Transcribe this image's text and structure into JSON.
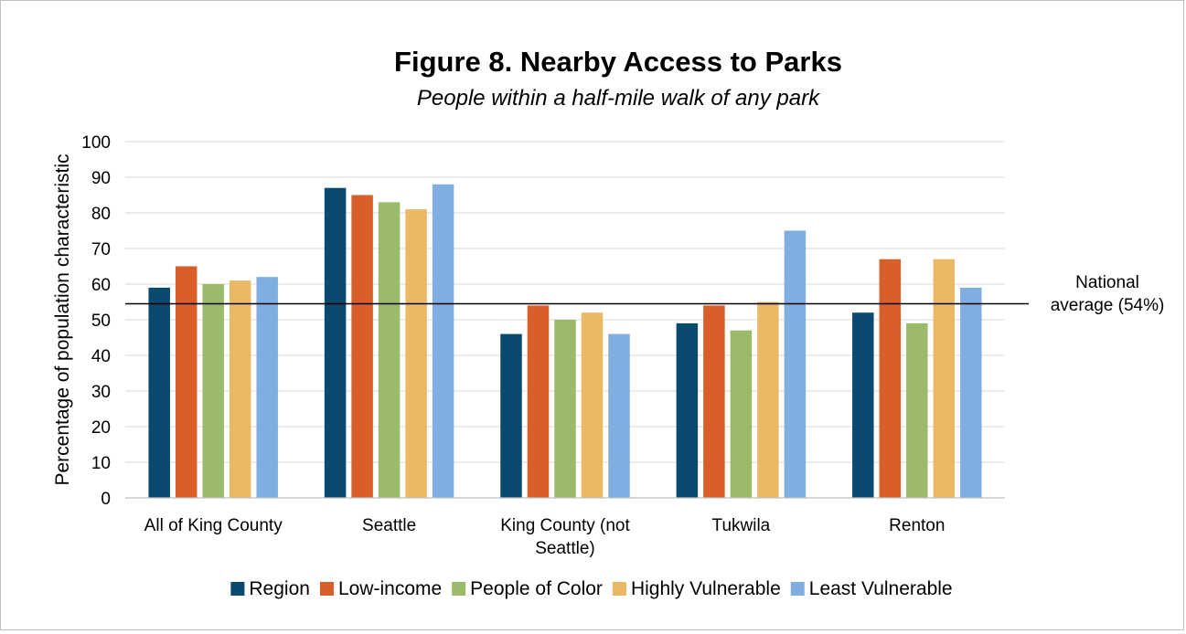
{
  "chart_data": {
    "type": "bar",
    "title": "Figure 8. Nearby Access to Parks",
    "subtitle": "People within a half-mile walk of any park",
    "ylabel": "Percentage of population characteristic",
    "xlabel": "",
    "ylim": [
      0,
      100
    ],
    "yticks": [
      0,
      10,
      20,
      30,
      40,
      50,
      60,
      70,
      80,
      90,
      100
    ],
    "grid": true,
    "legend_position": "bottom",
    "categories": [
      "All of King County",
      "Seattle",
      "King County (not Seattle)",
      "Tukwila",
      "Renton"
    ],
    "category_label_lines": [
      [
        "All of King County"
      ],
      [
        "Seattle"
      ],
      [
        "King County (not",
        "Seattle)"
      ],
      [
        "Tukwila"
      ],
      [
        "Renton"
      ]
    ],
    "series": [
      {
        "name": "Region",
        "color": "#0a4a6e",
        "values": [
          59,
          87,
          46,
          49,
          52
        ]
      },
      {
        "name": "Low-income",
        "color": "#d95f2a",
        "values": [
          65,
          85,
          54,
          54,
          67
        ]
      },
      {
        "name": "People of Color",
        "color": "#9bbb6a",
        "values": [
          60,
          83,
          50,
          47,
          49
        ]
      },
      {
        "name": "Highly Vulnerable",
        "color": "#ebb865",
        "values": [
          61,
          81,
          52,
          55,
          67
        ]
      },
      {
        "name": "Least Vulnerable",
        "color": "#80aee0",
        "values": [
          62,
          88,
          46,
          75,
          59
        ]
      }
    ],
    "reference_line": {
      "value": 54.5,
      "label_lines": [
        "National",
        "average (54%)"
      ],
      "color": "#000000"
    }
  }
}
